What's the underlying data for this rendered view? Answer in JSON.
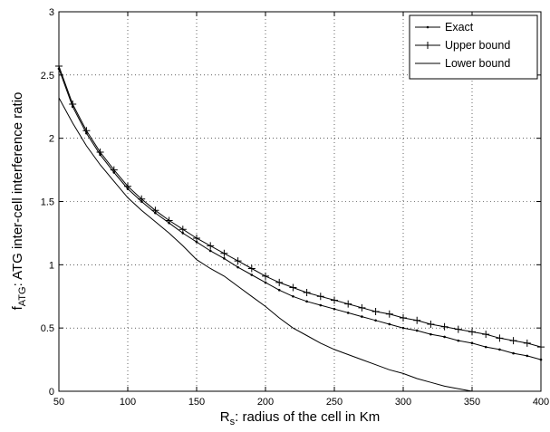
{
  "chart_data": {
    "type": "line",
    "title": "",
    "xlabel": {
      "main": "R",
      "sub": "s",
      "rest": ": radius of the cell in Km"
    },
    "ylabel": {
      "main": "f",
      "sub": "ATG",
      "rest": ": ATG inter-cell interference ratio"
    },
    "xlim": [
      50,
      400
    ],
    "ylim": [
      0,
      3
    ],
    "xticks": [
      "50",
      "100",
      "150",
      "200",
      "250",
      "300",
      "350",
      "400"
    ],
    "yticks": [
      "0",
      "0.5",
      "1",
      "1.5",
      "2",
      "2.5",
      "3"
    ],
    "grid": true,
    "legend_position": "top-right",
    "series": [
      {
        "name": "Exact",
        "marker": "dot",
        "x": [
          50,
          60,
          70,
          80,
          90,
          100,
          110,
          120,
          130,
          140,
          150,
          160,
          170,
          180,
          190,
          200,
          210,
          220,
          230,
          240,
          250,
          260,
          270,
          280,
          290,
          300,
          310,
          320,
          330,
          340,
          350,
          360,
          370,
          380,
          390,
          400
        ],
        "values": [
          2.55,
          2.25,
          2.04,
          1.87,
          1.73,
          1.6,
          1.5,
          1.41,
          1.33,
          1.25,
          1.18,
          1.11,
          1.05,
          0.98,
          0.92,
          0.86,
          0.8,
          0.75,
          0.71,
          0.68,
          0.65,
          0.62,
          0.59,
          0.56,
          0.53,
          0.5,
          0.48,
          0.45,
          0.43,
          0.4,
          0.38,
          0.35,
          0.33,
          0.3,
          0.28,
          0.25
        ]
      },
      {
        "name": "Upper bound",
        "marker": "plus",
        "x": [
          50,
          60,
          70,
          80,
          90,
          100,
          110,
          120,
          130,
          140,
          150,
          160,
          170,
          180,
          190,
          200,
          210,
          220,
          230,
          240,
          250,
          260,
          270,
          280,
          290,
          300,
          310,
          320,
          330,
          340,
          350,
          360,
          370,
          380,
          390,
          400
        ],
        "values": [
          2.57,
          2.27,
          2.06,
          1.89,
          1.75,
          1.62,
          1.52,
          1.43,
          1.35,
          1.28,
          1.21,
          1.15,
          1.09,
          1.03,
          0.97,
          0.91,
          0.86,
          0.82,
          0.78,
          0.75,
          0.72,
          0.69,
          0.66,
          0.63,
          0.61,
          0.58,
          0.56,
          0.53,
          0.51,
          0.49,
          0.47,
          0.45,
          0.42,
          0.4,
          0.38,
          0.35
        ]
      },
      {
        "name": "Lower bound",
        "marker": "none",
        "x": [
          50,
          60,
          70,
          80,
          90,
          100,
          110,
          120,
          130,
          140,
          150,
          160,
          170,
          180,
          190,
          200,
          210,
          220,
          230,
          240,
          250,
          260,
          270,
          280,
          290,
          300,
          310,
          320,
          330,
          340,
          350
        ],
        "values": [
          2.32,
          2.12,
          1.94,
          1.79,
          1.66,
          1.53,
          1.43,
          1.34,
          1.25,
          1.15,
          1.04,
          0.97,
          0.91,
          0.83,
          0.75,
          0.67,
          0.58,
          0.5,
          0.44,
          0.38,
          0.33,
          0.29,
          0.25,
          0.21,
          0.17,
          0.14,
          0.1,
          0.07,
          0.04,
          0.02,
          0.0
        ]
      }
    ]
  }
}
